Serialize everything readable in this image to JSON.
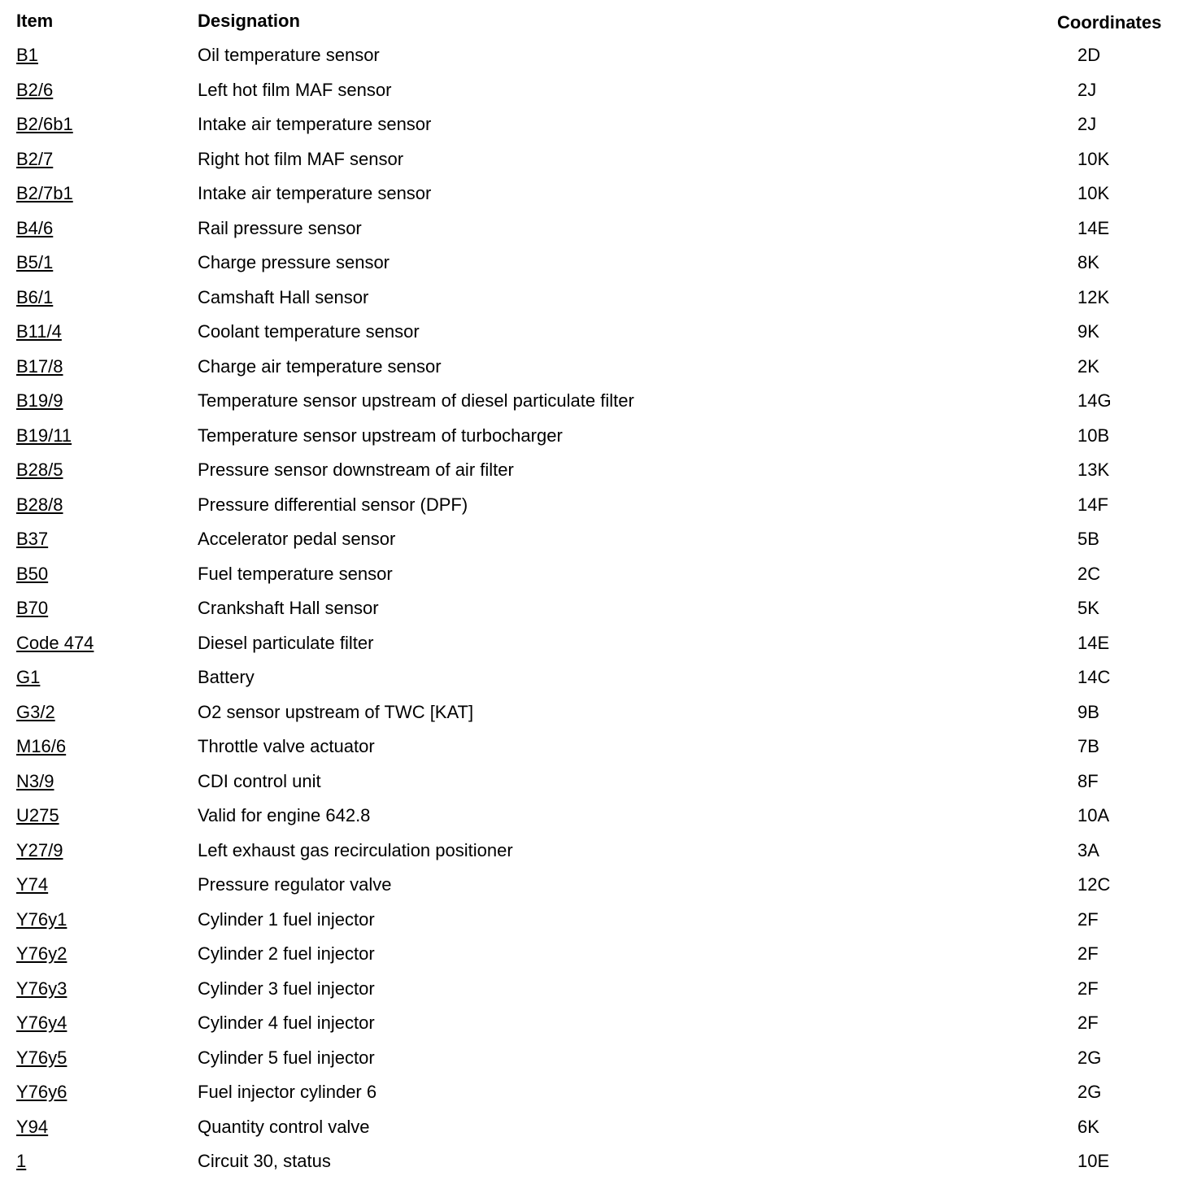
{
  "headers": {
    "item": "Item",
    "designation": "Designation",
    "coordinates": "Coordinates"
  },
  "rows": [
    {
      "item": "B1",
      "designation": "Oil temperature sensor",
      "coordinates": "2D"
    },
    {
      "item": "B2/6",
      "designation": "Left hot film MAF sensor",
      "coordinates": "2J"
    },
    {
      "item": "B2/6b1",
      "designation": "Intake air temperature sensor",
      "coordinates": "2J"
    },
    {
      "item": "B2/7",
      "designation": "Right hot film MAF sensor",
      "coordinates": "10K"
    },
    {
      "item": "B2/7b1",
      "designation": "Intake air temperature sensor",
      "coordinates": "10K"
    },
    {
      "item": "B4/6",
      "designation": "Rail pressure sensor",
      "coordinates": "14E"
    },
    {
      "item": "B5/1",
      "designation": "Charge pressure sensor",
      "coordinates": "8K"
    },
    {
      "item": "B6/1",
      "designation": "Camshaft Hall sensor",
      "coordinates": "12K"
    },
    {
      "item": "B11/4",
      "designation": "Coolant temperature sensor",
      "coordinates": "9K"
    },
    {
      "item": "B17/8",
      "designation": "Charge air temperature sensor",
      "coordinates": "2K"
    },
    {
      "item": "B19/9",
      "designation": "Temperature sensor upstream of diesel particulate filter",
      "coordinates": "14G"
    },
    {
      "item": "B19/11",
      "designation": "Temperature sensor upstream of turbocharger",
      "coordinates": "10B"
    },
    {
      "item": "B28/5",
      "designation": "Pressure sensor downstream of air filter",
      "coordinates": "13K"
    },
    {
      "item": "B28/8",
      "designation": "Pressure differential sensor (DPF)",
      "coordinates": "14F"
    },
    {
      "item": "B37",
      "designation": "Accelerator pedal sensor",
      "coordinates": "5B"
    },
    {
      "item": "B50",
      "designation": "Fuel temperature sensor",
      "coordinates": "2C"
    },
    {
      "item": "B70",
      "designation": "Crankshaft Hall sensor",
      "coordinates": "5K"
    },
    {
      "item": "Code 474",
      "designation": "Diesel particulate filter",
      "coordinates": "14E"
    },
    {
      "item": "G1",
      "designation": "Battery",
      "coordinates": "14C"
    },
    {
      "item": "G3/2",
      "designation": "O2 sensor upstream of TWC [KAT]",
      "coordinates": "9B"
    },
    {
      "item": "M16/6",
      "designation": "Throttle valve actuator",
      "coordinates": "7B"
    },
    {
      "item": "N3/9",
      "designation": "CDI control unit",
      "coordinates": "8F"
    },
    {
      "item": "U275",
      "designation": "Valid for engine 642.8",
      "coordinates": "10A"
    },
    {
      "item": "Y27/9",
      "designation": "Left exhaust gas recirculation positioner",
      "coordinates": "3A"
    },
    {
      "item": "Y74",
      "designation": "Pressure regulator valve",
      "coordinates": "12C"
    },
    {
      "item": "Y76y1",
      "designation": "Cylinder 1 fuel injector",
      "coordinates": "2F"
    },
    {
      "item": "Y76y2",
      "designation": "Cylinder 2 fuel injector",
      "coordinates": "2F"
    },
    {
      "item": "Y76y3",
      "designation": "Cylinder 3 fuel injector",
      "coordinates": "2F"
    },
    {
      "item": "Y76y4",
      "designation": "Cylinder 4 fuel injector",
      "coordinates": "2F"
    },
    {
      "item": "Y76y5",
      "designation": "Cylinder 5 fuel injector",
      "coordinates": "2G"
    },
    {
      "item": "Y76y6",
      "designation": "Fuel injector cylinder 6",
      "coordinates": "2G"
    },
    {
      "item": "Y94",
      "designation": "Quantity control valve",
      "coordinates": "6K"
    },
    {
      "item": "1",
      "designation": "Circuit 30, status",
      "coordinates": "10E"
    }
  ]
}
